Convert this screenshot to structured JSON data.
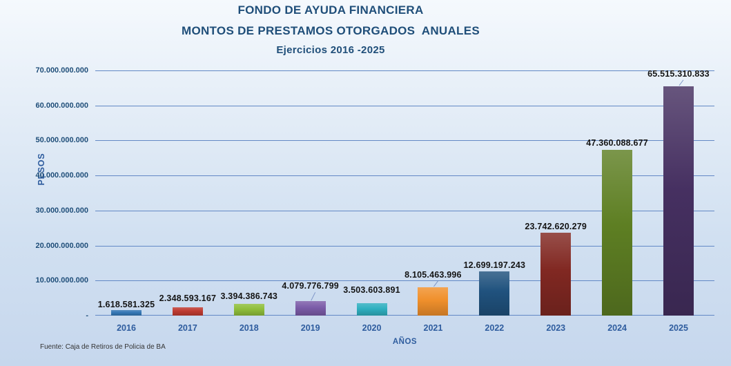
{
  "chart_data": {
    "type": "bar",
    "title_lines": [
      "FONDO DE AYUDA FINANCIERA",
      "MONTOS DE PRESTAMOS OTORGADOS  ANUALES",
      "Ejercicios 2016 -2025"
    ],
    "categories": [
      "2016",
      "2017",
      "2018",
      "2019",
      "2020",
      "2021",
      "2022",
      "2023",
      "2024",
      "2025"
    ],
    "values": [
      1618581325,
      2348593167,
      3394386743,
      4079776799,
      3503603891,
      8105463996,
      12699197243,
      23742620279,
      47360088677,
      65515310833
    ],
    "value_labels": [
      "1.618.581.325",
      "2.348.593.167",
      "3.394.386.743",
      "4.079.776.799",
      "3.503.603.891",
      "8.105.463.996",
      "12.699.197.243",
      "23.742.620.279",
      "47.360.088.677",
      "65.515.310.833"
    ],
    "bar_colors": [
      "#3577B5",
      "#BE3A31",
      "#8FBE3B",
      "#7B5CA8",
      "#2FAFC0",
      "#F0902C",
      "#20527E",
      "#812822",
      "#5E7F23",
      "#463061"
    ],
    "xlabel": "AÑOS",
    "ylabel": "PESOS",
    "ylim": [
      0,
      70000000000
    ],
    "ytick_step": 10000000000,
    "ytick_labels_top_to_bottom": [
      "70.000.000.000",
      "60.000.000.000",
      "50.000.000.000",
      "40.000.000.000",
      "30.000.000.000",
      "20.000.000.000",
      "10.000.000.000",
      "-"
    ],
    "grid": true,
    "legend": "none",
    "layout": {
      "label_offsets": [
        15,
        20,
        18,
        29,
        26,
        25,
        16,
        16,
        17,
        25
      ],
      "leader_indices": [
        3,
        5,
        9
      ]
    }
  },
  "footer": {
    "source_label": "Fuente: Caja de Retiros de Policia de BA"
  },
  "colors": {
    "title_text": "#1F4E79",
    "ytick_text": "#1F4E79",
    "xtick_text": "#2E5C9E",
    "gridline": "#6288C5",
    "value_label_text": "#141414",
    "leader_line": "#7E96C8",
    "background_top": "#F5F9FD",
    "background_bottom": "#C6D7ED",
    "source_text": "#333333"
  }
}
